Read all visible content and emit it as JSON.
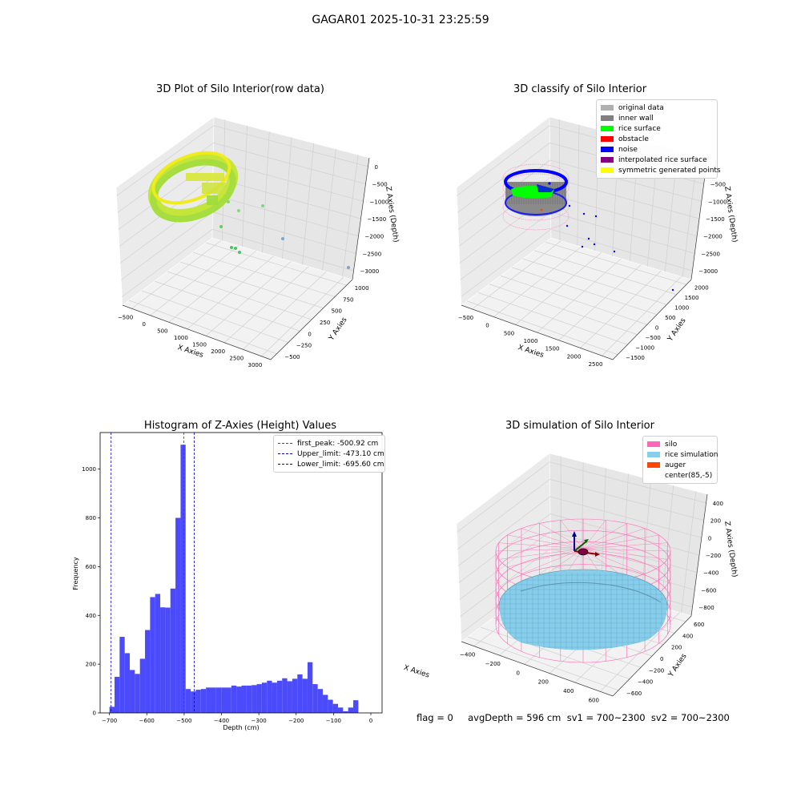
{
  "suptitle": "GAGAR01 2025-10-31 23:25:59",
  "footer": "flag = 0     avgDepth = 596 cm  sv1 = 700~2300  sv2 = 700~2300",
  "colors": {
    "silo": "#ff69b4",
    "rice": "#87ceeb",
    "auger": "#ff4500",
    "hist_bar": "#4b4bfb",
    "first_peak": "#ff0000",
    "limits": "#0000cc",
    "original": "#b0b0b0",
    "inner_wall": "#808080",
    "rice_surface": "#00ff00",
    "obstacle": "#ff0000",
    "noise": "#0000ff",
    "interpolated": "#800080",
    "symmetric": "#ffff00"
  },
  "panels": {
    "p1": {
      "title": "3D Plot of Silo Interior(row data)",
      "xlabel": "X Axies",
      "ylabel": "Y Axies",
      "zlabel": "Z Axies (Depth)",
      "xticks": [
        "−500",
        "0",
        "500",
        "1000",
        "1500",
        "2000",
        "2500",
        "3000"
      ],
      "yticks": [
        "1000",
        "750",
        "500",
        "250",
        "0",
        "−250",
        "−500"
      ],
      "zticks": [
        "0",
        "−500",
        "−1000",
        "−1500",
        "−2000",
        "−2500",
        "−3000"
      ]
    },
    "p2": {
      "title": "3D classify of Silo Interior",
      "xlabel": "X Axies",
      "ylabel": "Y Axies",
      "zlabel": "Z Axies (Depth)",
      "xticks": [
        "−500",
        "0",
        "500",
        "1000",
        "1500",
        "2000",
        "2500"
      ],
      "yticks": [
        "2000",
        "1500",
        "1000",
        "500",
        "0",
        "−500",
        "−1000",
        "−1500"
      ],
      "zticks": [
        "0",
        "−500",
        "−1000",
        "−1500",
        "−2000",
        "−2500",
        "−3000"
      ],
      "legend": [
        {
          "label": "original data",
          "color": "#b0b0b0"
        },
        {
          "label": "inner wall",
          "color": "#808080"
        },
        {
          "label": "rice surface",
          "color": "#00ff00"
        },
        {
          "label": "obstacle",
          "color": "#ff0000"
        },
        {
          "label": "noise",
          "color": "#0000ff"
        },
        {
          "label": "interpolated rice surface",
          "color": "#800080"
        },
        {
          "label": "symmetric generated points",
          "color": "#ffff00"
        }
      ]
    },
    "p4": {
      "title": "3D simulation of Silo Interior",
      "xlabel": "X Axies",
      "ylabel": "Y Axies",
      "zlabel": "Z Axies (Depth)",
      "xticks": [
        "−400",
        "−200",
        "0",
        "200",
        "400",
        "600"
      ],
      "yticks": [
        "600",
        "400",
        "200",
        "0",
        "−200",
        "−400",
        "−600"
      ],
      "zticks": [
        "400",
        "200",
        "0",
        "−200",
        "−400",
        "−600",
        "−800"
      ],
      "legend": [
        {
          "label": "silo",
          "color": "#ff69b4"
        },
        {
          "label": "rice simulation",
          "color": "#87ceeb"
        },
        {
          "label": "auger",
          "color": "#ff4500"
        },
        {
          "label": "center(85,-5)",
          "color": ""
        }
      ]
    }
  },
  "chart_data": [
    {
      "type": "scatter",
      "title": "3D Plot of Silo Interior(row data)",
      "xlabel": "X Axies",
      "ylabel": "Y Axies",
      "zlabel": "Z Axies (Depth)",
      "xlim": [
        -700,
        3100
      ],
      "ylim": [
        -600,
        1100
      ],
      "zlim": [
        -3300,
        0
      ]
    },
    {
      "type": "scatter",
      "title": "3D classify of Silo Interior",
      "xlabel": "X Axies",
      "ylabel": "Y Axies",
      "zlabel": "Z Axies (Depth)",
      "xlim": [
        -700,
        2800
      ],
      "ylim": [
        -1600,
        2100
      ],
      "zlim": [
        -3300,
        0
      ],
      "series": [
        {
          "name": "original data"
        },
        {
          "name": "inner wall"
        },
        {
          "name": "rice surface"
        },
        {
          "name": "obstacle"
        },
        {
          "name": "noise"
        },
        {
          "name": "interpolated rice surface"
        },
        {
          "name": "symmetric generated points"
        }
      ]
    },
    {
      "type": "bar",
      "title": "Histogram of Z-Axies (Height) Values",
      "xlabel": "Depth (cm)",
      "ylabel": "Frequency",
      "xlim": [
        -725,
        30
      ],
      "ylim": [
        0,
        1150
      ],
      "xticks": [
        "−700",
        "−600",
        "−500",
        "−400",
        "−300",
        "−200",
        "−100",
        "0"
      ],
      "yticks": [
        "0",
        "200",
        "400",
        "600",
        "800",
        "1000"
      ],
      "bin_start": -700,
      "bin_width": 13.6,
      "values": [
        25,
        148,
        312,
        245,
        176,
        160,
        222,
        340,
        475,
        488,
        433,
        432,
        510,
        800,
        1100,
        98,
        88,
        95,
        98,
        104,
        104,
        104,
        104,
        104,
        112,
        108,
        112,
        112,
        114,
        118,
        124,
        132,
        124,
        132,
        142,
        130,
        140,
        158,
        140,
        208,
        118,
        98,
        74,
        54,
        37,
        22,
        7,
        22,
        52
      ],
      "vlines": [
        {
          "name": "first_peak: -500.92 cm",
          "x": -500.92,
          "color": "#ff0000"
        },
        {
          "name": "Upper_limit: -473.10 cm",
          "x": -473.1,
          "color": "#0000cc"
        },
        {
          "name": "Lower_limit: -695.60 cm",
          "x": -695.6,
          "color": "#0000cc"
        }
      ]
    },
    {
      "type": "scatter",
      "title": "3D simulation of Silo Interior",
      "xlabel": "X Axies",
      "ylabel": "Y Axies",
      "zlabel": "Z Axies (Depth)",
      "xlim": [
        -550,
        750
      ],
      "ylim": [
        -700,
        700
      ],
      "zlim": [
        -950,
        450
      ],
      "series": [
        {
          "name": "silo"
        },
        {
          "name": "rice simulation"
        },
        {
          "name": "auger"
        }
      ]
    }
  ]
}
